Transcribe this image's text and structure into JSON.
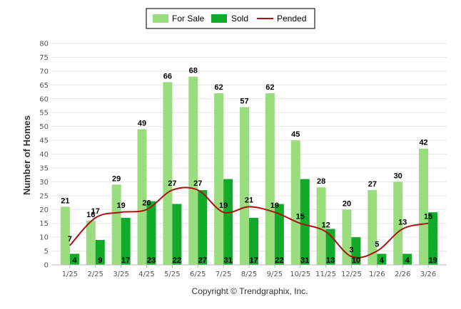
{
  "chart_data": {
    "type": "bar",
    "categories": [
      "1/25",
      "2/25",
      "3/25",
      "4/25",
      "5/25",
      "6/25",
      "7/25",
      "8/25",
      "9/25",
      "10/25",
      "11/25",
      "12/25",
      "1/26",
      "2/26",
      "3/26"
    ],
    "series": [
      {
        "name": "For Sale",
        "kind": "bar",
        "color": "#99dd7f",
        "values": [
          21,
          16,
          29,
          49,
          66,
          68,
          62,
          57,
          62,
          45,
          28,
          20,
          27,
          30,
          42
        ]
      },
      {
        "name": "Sold",
        "kind": "bar",
        "color": "#11aa2a",
        "values": [
          4,
          9,
          17,
          23,
          22,
          27,
          31,
          17,
          22,
          31,
          13,
          10,
          4,
          4,
          19
        ]
      },
      {
        "name": "Pended",
        "kind": "line",
        "color": "#aa1111",
        "values": [
          7,
          17,
          19,
          20,
          27,
          27,
          19,
          21,
          19,
          15,
          12,
          3,
          5,
          13,
          15
        ]
      }
    ],
    "ylabel": "Number of Homes",
    "xlabel": "",
    "ylim": [
      0,
      80
    ],
    "yticks": [
      0,
      5,
      10,
      15,
      20,
      25,
      30,
      35,
      40,
      45,
      50,
      55,
      60,
      65,
      70,
      75,
      80
    ],
    "grid": true,
    "legend_position": "top-center",
    "footer": "Copyright © Trendgraphix, Inc."
  }
}
